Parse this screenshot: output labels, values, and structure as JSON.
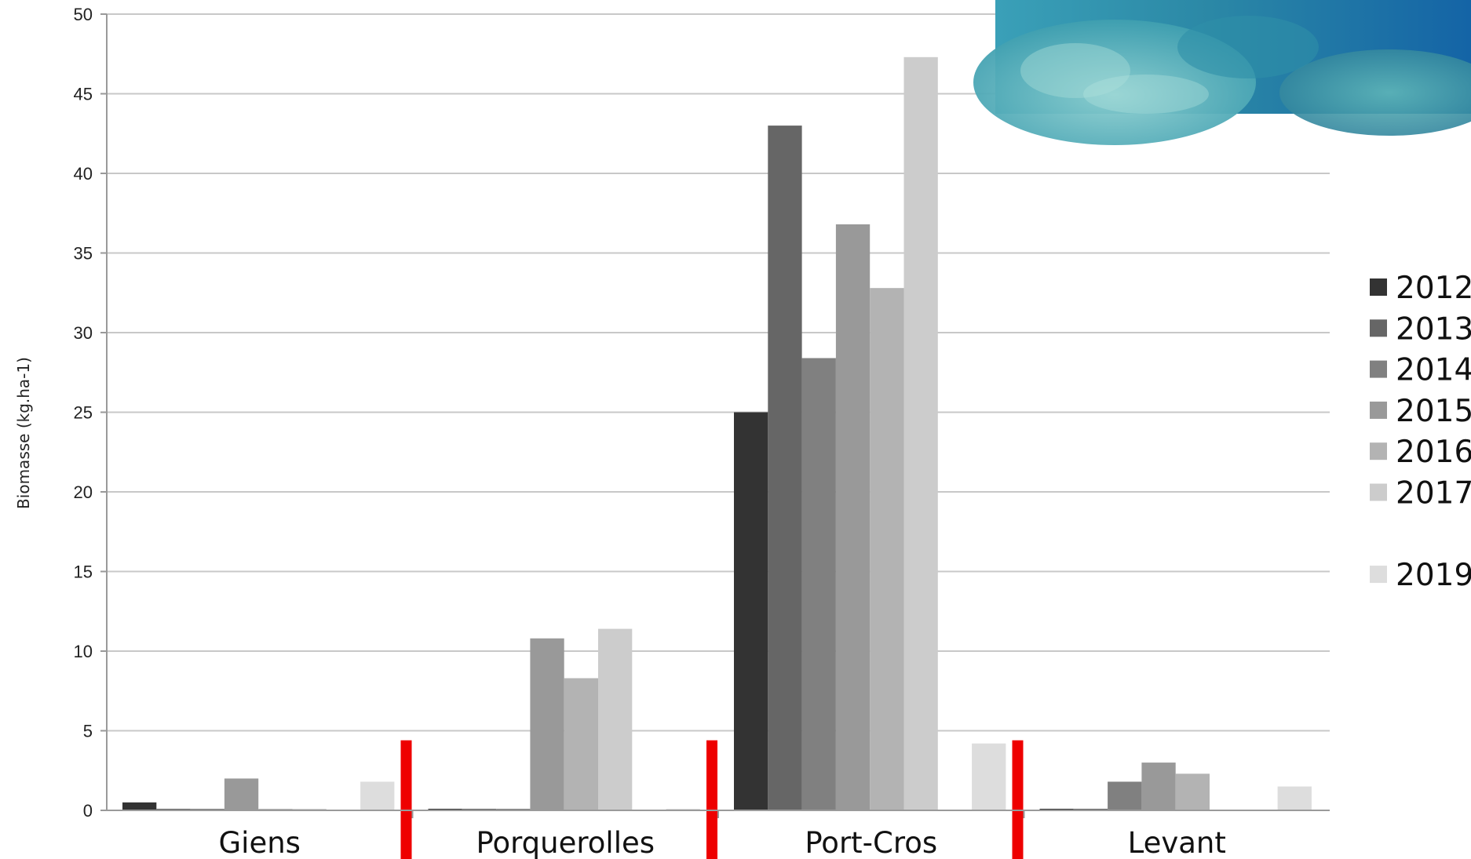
{
  "chart_data": {
    "type": "bar",
    "title": "",
    "xlabel": "",
    "ylabel": "Biomasse (kg.ha-1)",
    "ylim": [
      0,
      50
    ],
    "yticks": [
      0,
      5,
      10,
      15,
      20,
      25,
      30,
      35,
      40,
      45,
      50
    ],
    "grid": true,
    "legend_position": "right",
    "categories": [
      "Giens",
      "Porquerolles",
      "Port-Cros",
      "Levant"
    ],
    "series": [
      {
        "name": "2012",
        "color": "#333333",
        "values": [
          0.5,
          0.1,
          25.0,
          0.1
        ]
      },
      {
        "name": "2013",
        "color": "#666666",
        "values": [
          0.1,
          0.1,
          43.0,
          0.1
        ]
      },
      {
        "name": "2014",
        "color": "#808080",
        "values": [
          0.1,
          0.1,
          28.4,
          1.8
        ]
      },
      {
        "name": "2015",
        "color": "#999999",
        "values": [
          2.0,
          10.8,
          36.8,
          3.0
        ]
      },
      {
        "name": "2016",
        "color": "#b3b3b3",
        "values": [
          0.1,
          8.3,
          32.8,
          2.3
        ]
      },
      {
        "name": "2017",
        "color": "#cccccc",
        "values": [
          0.1,
          11.4,
          47.3,
          0.0
        ]
      },
      {
        "name": "",
        "color": "#d5d5d5",
        "values": [
          0.0,
          0.0,
          0.0,
          0.0
        ]
      },
      {
        "name": "2019",
        "color": "#dddddd",
        "values": [
          1.8,
          0.1,
          4.2,
          1.5
        ]
      }
    ],
    "annotations": [
      "red separator bars between sites"
    ],
    "inset_image": "underwater-seabed-photo"
  }
}
